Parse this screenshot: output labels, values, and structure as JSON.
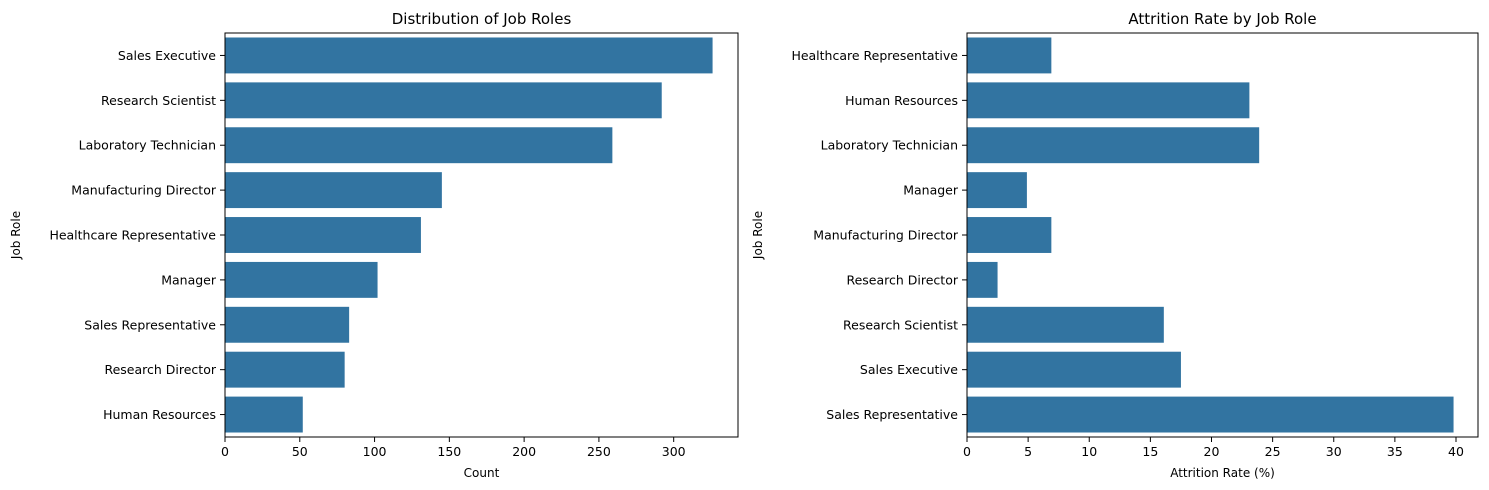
{
  "chart_data": [
    {
      "type": "bar",
      "orientation": "horizontal",
      "title": "Distribution of Job Roles",
      "xlabel": "Count",
      "ylabel": "Job Role",
      "categories": [
        "Sales Executive",
        "Research Scientist",
        "Laboratory Technician",
        "Manufacturing Director",
        "Healthcare Representative",
        "Manager",
        "Sales Representative",
        "Research Director",
        "Human Resources"
      ],
      "values": [
        326,
        292,
        259,
        145,
        131,
        102,
        83,
        80,
        52
      ],
      "xlim": [
        0,
        343
      ],
      "xticks": [
        0,
        50,
        100,
        150,
        200,
        250,
        300
      ],
      "color": "#3274a1",
      "grid": false
    },
    {
      "type": "bar",
      "orientation": "horizontal",
      "title": "Attrition Rate by Job Role",
      "xlabel": "Attrition Rate (%)",
      "ylabel": "Job Role",
      "categories": [
        "Healthcare Representative",
        "Human Resources",
        "Laboratory Technician",
        "Manager",
        "Manufacturing Director",
        "Research Director",
        "Research Scientist",
        "Sales Executive",
        "Sales Representative"
      ],
      "values": [
        6.9,
        23.1,
        23.9,
        4.9,
        6.9,
        2.5,
        16.1,
        17.5,
        39.8
      ],
      "xlim": [
        0,
        41.8
      ],
      "xticks": [
        0,
        5,
        10,
        15,
        20,
        25,
        30,
        35,
        40
      ],
      "color": "#3274a1",
      "grid": false
    }
  ]
}
